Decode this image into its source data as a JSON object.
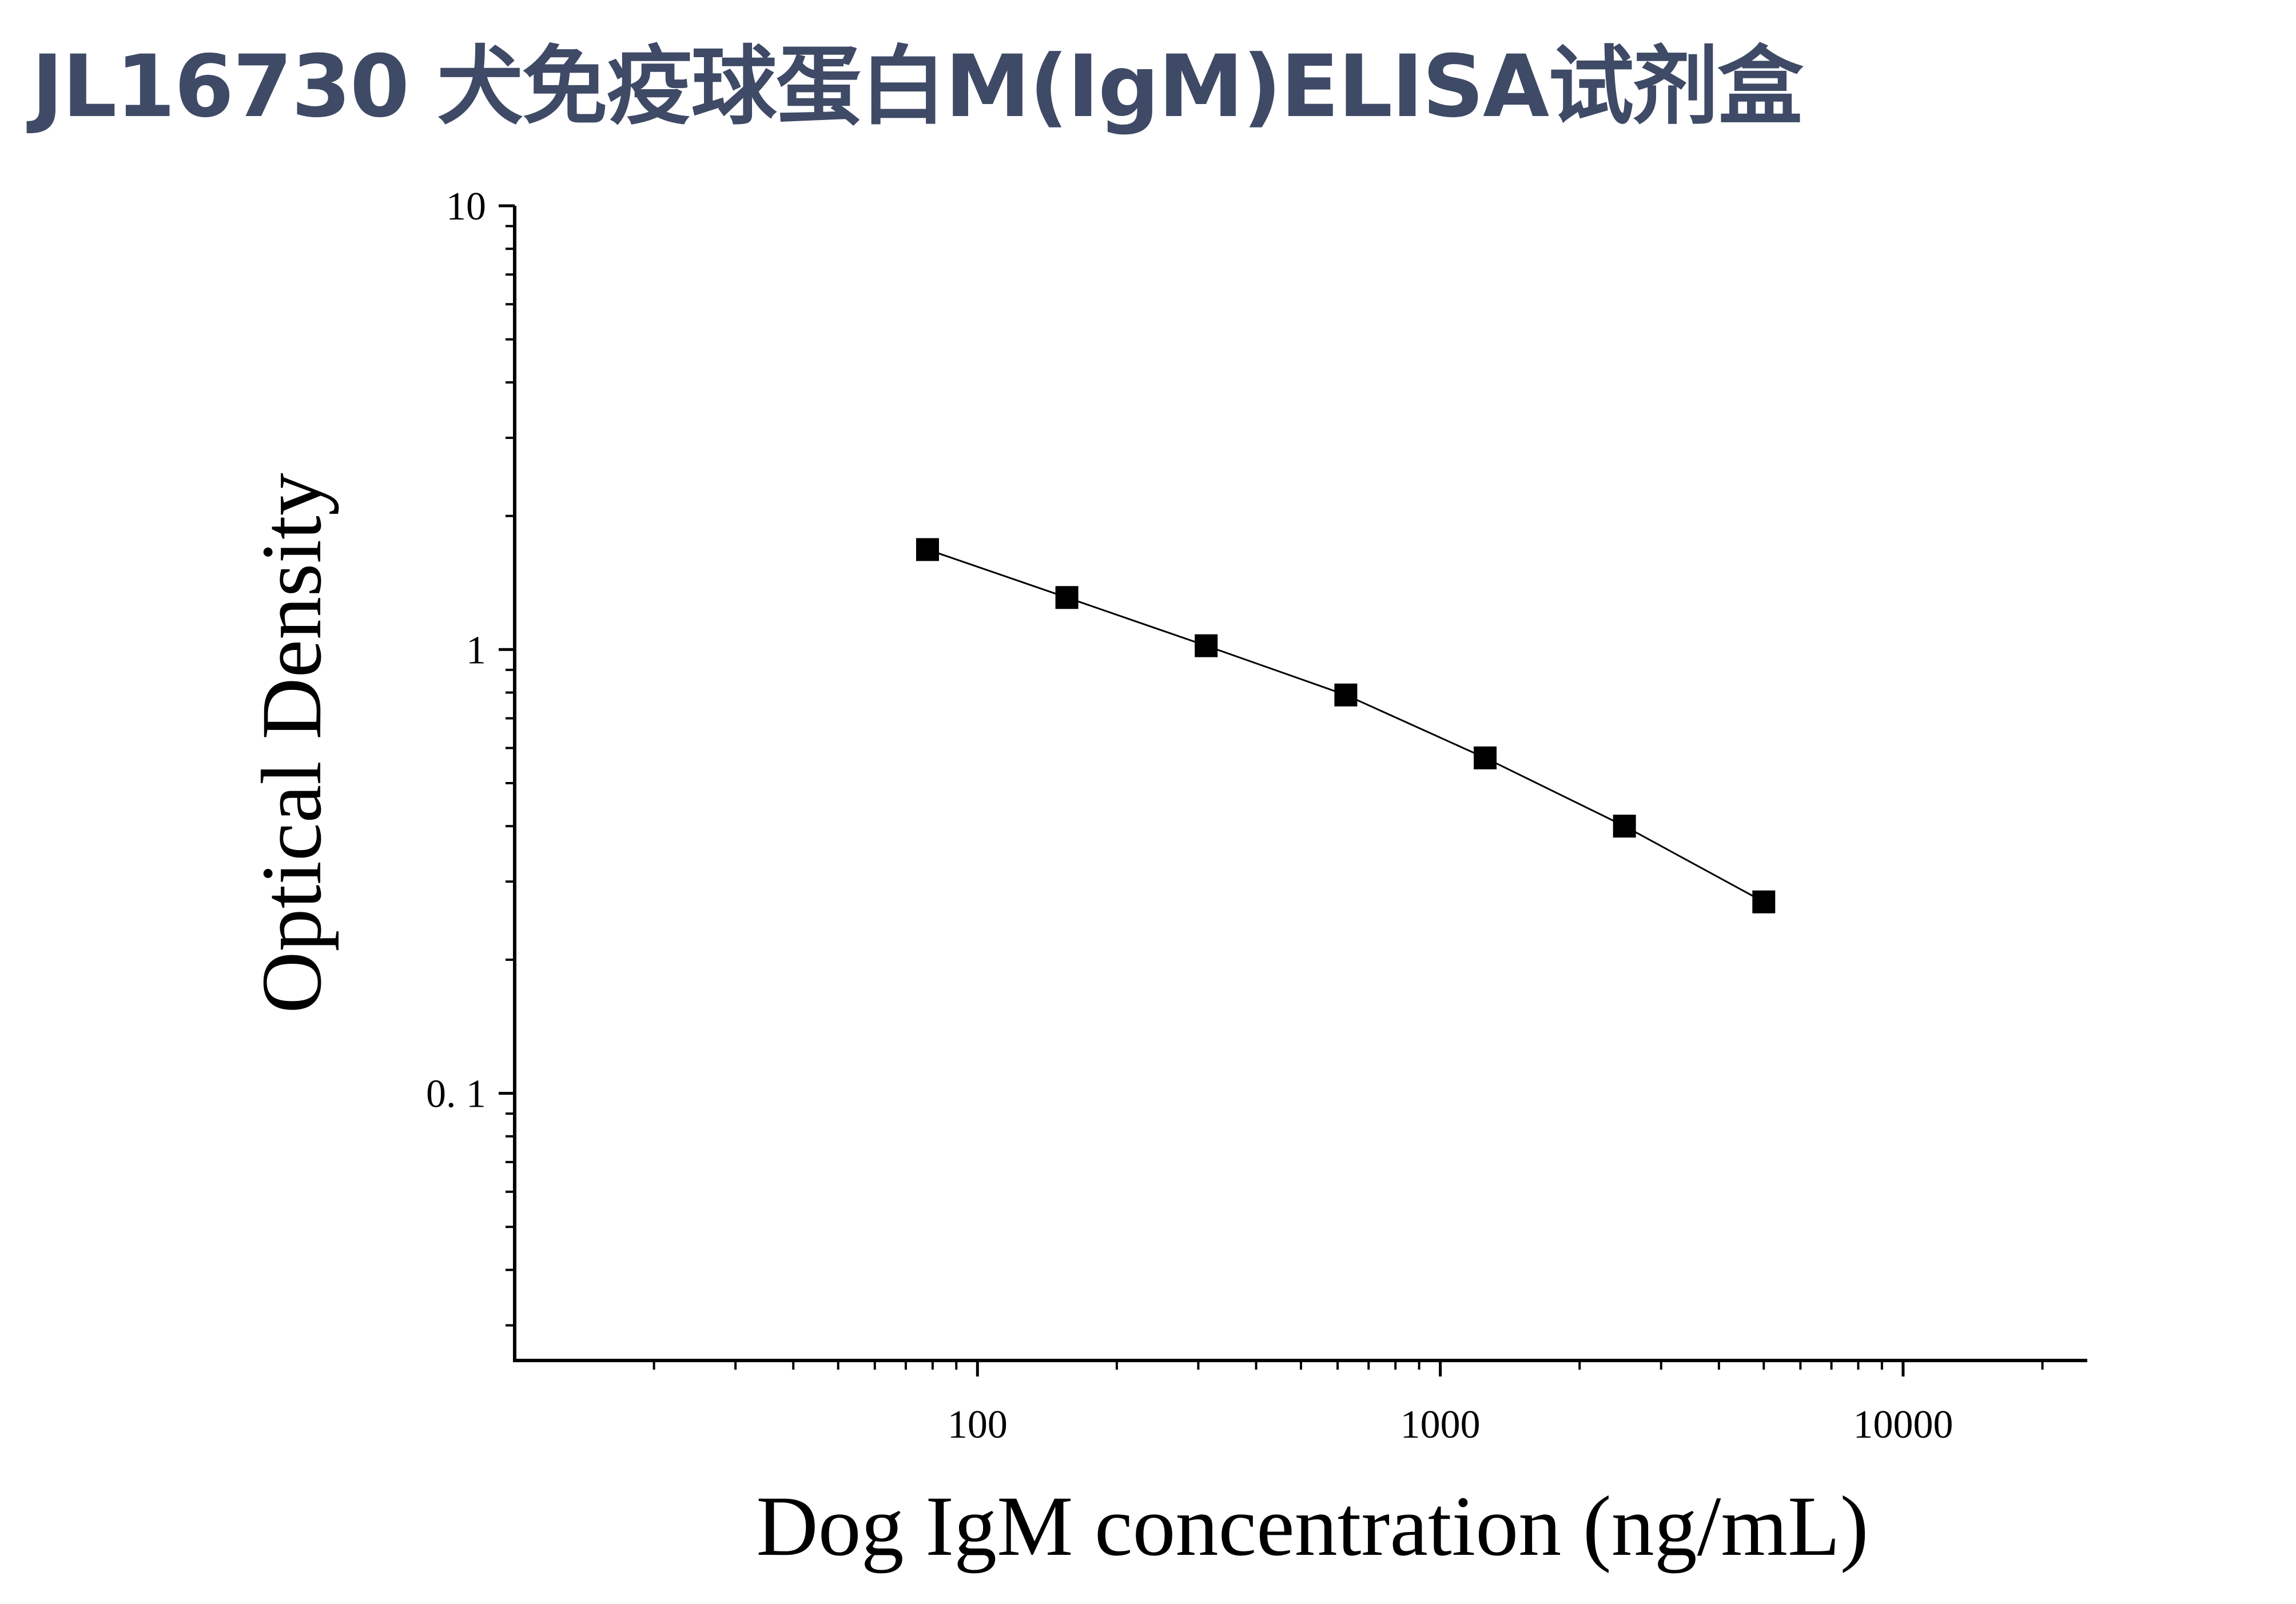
{
  "title": "JL16730 犬免疫球蛋白M(IgM)ELISA试剂盒",
  "chart_data": {
    "type": "scatter",
    "xlabel": "Dog IgM concentration (ng/mL)",
    "ylabel": "Optical Density",
    "x_scale": "log",
    "y_scale": "log",
    "xlim": [
      10,
      25000
    ],
    "ylim": [
      0.025,
      10
    ],
    "x_tick_labels": [
      "100",
      "1000",
      "10000"
    ],
    "y_tick_labels": [
      "10",
      "1",
      "0. 1"
    ],
    "grid": false,
    "fit_line": true,
    "series": [
      {
        "x": [
          78,
          156,
          312,
          625,
          1250,
          2500,
          5000
        ],
        "y": [
          1.68,
          1.31,
          1.02,
          0.79,
          0.57,
          0.4,
          0.27
        ]
      }
    ],
    "colors": {
      "marker": "#000000",
      "line": "#000000",
      "title": "#3f4a66"
    }
  }
}
